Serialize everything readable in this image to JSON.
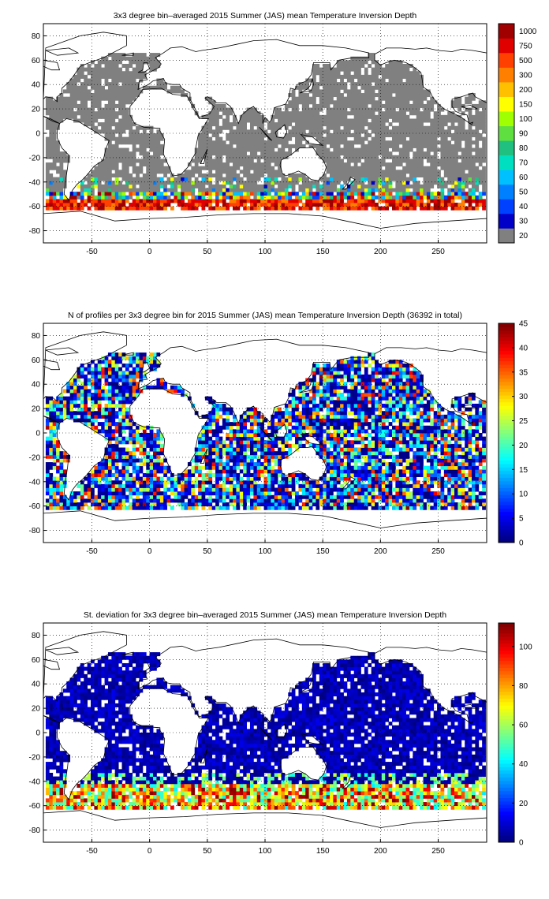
{
  "panels": [
    {
      "id": "depth",
      "title": "3x3 degree bin–averaged 2015 Summer (JAS) mean Temperature Inversion Depth",
      "colorbar_type": "discrete",
      "colorbar_labels": [
        "20",
        "30",
        "40",
        "50",
        "60",
        "70",
        "80",
        "90",
        "100",
        "150",
        "200",
        "300",
        "500",
        "750",
        "1000"
      ],
      "colorbar_colors": [
        "#808080",
        "#0000c8",
        "#0040ff",
        "#0080ff",
        "#00c0ff",
        "#00e0c0",
        "#20c080",
        "#60e040",
        "#a0ff00",
        "#ffff00",
        "#ffc000",
        "#ff8000",
        "#ff4000",
        "#e00000",
        "#a00000"
      ]
    },
    {
      "id": "count",
      "title": "N of profiles per 3x3 degree bin for 2015 Summer (JAS) mean Temperature Inversion Depth  (36392 in total)",
      "colorbar_type": "continuous",
      "colorbar_ticks": [
        "0",
        "5",
        "10",
        "15",
        "20",
        "25",
        "30",
        "35",
        "40",
        "45"
      ],
      "colorbar_range": [
        0,
        45
      ]
    },
    {
      "id": "stdev",
      "title": "St. deviation for 3x3 degree bin–averaged 2015 Summer (JAS) mean Temperature Inversion Depth",
      "colorbar_type": "continuous",
      "colorbar_ticks": [
        "0",
        "20",
        "40",
        "60",
        "80",
        "100"
      ],
      "colorbar_range": [
        0,
        112
      ]
    }
  ],
  "x_ticks": [
    "-50",
    "0",
    "50",
    "100",
    "150",
    "200",
    "250"
  ],
  "y_ticks": [
    "80",
    "60",
    "40",
    "20",
    "0",
    "-20",
    "-40",
    "-60",
    "-80"
  ],
  "map": {
    "x_range": [
      -92,
      292
    ],
    "y_range": [
      -90,
      90
    ],
    "grid": "dotted",
    "bin_deg": 3
  }
}
